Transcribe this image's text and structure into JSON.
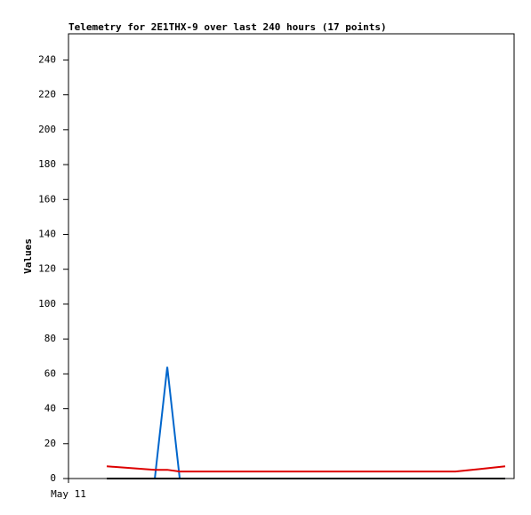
{
  "chart_data": {
    "type": "line",
    "title": "Telemetry for 2E1THX-9 over last 240 hours (17 points)",
    "y_label": "Values",
    "x": [
      20.6,
      46.5,
      53.2,
      59.9,
      73.4,
      86.9,
      100.4,
      113.9,
      127.4,
      140.9,
      154.4,
      167.9,
      181.4,
      194.9,
      208.4,
      221.9,
      235.2
    ],
    "xlim": [
      0,
      240
    ],
    "xticks": [
      {
        "value": 0,
        "label": "May 11"
      }
    ],
    "ylim": [
      0,
      255
    ],
    "yticks": [
      0,
      20,
      40,
      60,
      80,
      100,
      120,
      140,
      160,
      180,
      200,
      220,
      240
    ],
    "grid": false,
    "series": [
      {
        "color": "#0066cc",
        "values": [
          0,
          0,
          64,
          0,
          0,
          0,
          0,
          0,
          0,
          0,
          0,
          0,
          0,
          0,
          0,
          0,
          0
        ]
      },
      {
        "color": "#dd0000",
        "values": [
          7,
          5,
          5,
          4,
          4,
          4,
          4,
          4,
          4,
          4,
          4,
          4,
          4,
          4,
          4,
          5.5,
          7
        ]
      },
      {
        "color": "#000000",
        "values": [
          0,
          0,
          0,
          0,
          0,
          0,
          0,
          0,
          0,
          0,
          0,
          0,
          0,
          0,
          0,
          0,
          0
        ]
      }
    ]
  }
}
